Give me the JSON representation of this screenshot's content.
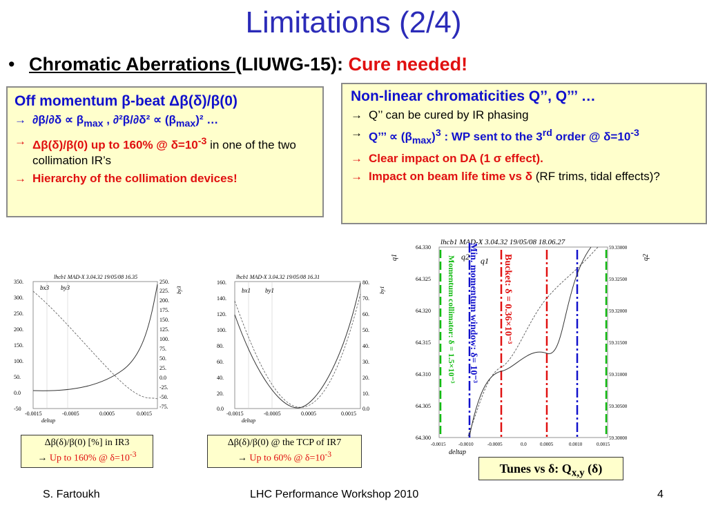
{
  "title": "Limitations (2/4)",
  "bullet": {
    "dot": "•",
    "underlined": "Chromatic Aberrations ",
    "rest": "(LIUWG-15): ",
    "red": "Cure needed!"
  },
  "left_box": {
    "head": "Off momentum β-beat Δβ(δ)/β(0)",
    "line1_a": "∂β/∂δ ∝ β",
    "line1_sub": "max",
    "line1_b": " , ∂²β/∂δ² ∝ (β",
    "line1_sub2": "max",
    "line1_c": ")²",
    "line1_d": " …",
    "line2_red": "Δβ(δ)/β(0) up to 160% @ δ=10",
    "line2_sup": "-3",
    "line2_rest": " in one of the two collimation IR’s",
    "line3": "Hierarchy of the collimation devices!"
  },
  "right_box": {
    "head": "Non-linear chromaticities Q’’, Q’’’ …",
    "line1": "Q’’ can be cured by IR phasing",
    "line2_a": "Q’’’ ∝ (β",
    "line2_sub": "max",
    "line2_b": ")",
    "line2_sup": "3",
    "line2_c": " : WP sent to the 3",
    "line2_sup2": "rd",
    "line2_d": " order @ δ=10",
    "line2_sup3": "-3",
    "line3": "Clear impact on DA (1 σ effect).",
    "line4_a": "Impact on beam life time vs δ",
    "line4_b": " (RF trims, tidal effects)?"
  },
  "arrow": "→",
  "plot1": {
    "header": "lhcb1     MAD-X 3.04.32  19/05/08 16.35",
    "legend1": "bx3",
    "legend2": "by3",
    "xlabel": "deltap",
    "ylabel_right": "by3",
    "yticks_left": [
      "350.",
      "300.",
      "250.",
      "200.",
      "150.",
      "100.",
      "50.",
      "0.0",
      "-50"
    ],
    "yticks_right": [
      "250.",
      "225.",
      "200.",
      "175.",
      "150.",
      "125.",
      "100.",
      "75.",
      "50.",
      "25.",
      "0.0",
      "-25.",
      "-50.",
      "-75."
    ],
    "xticks": [
      "-0.0015",
      "-0.0005",
      "0.0005",
      "0.0015"
    ]
  },
  "plot2": {
    "header": "lhcb1     MAD-X 3.04.32  19/05/08 16.31",
    "legend1": "bx1",
    "legend2": "by1",
    "xlabel": "deltap",
    "ylabel_right": "by1",
    "yticks_left": [
      "160.",
      "140.",
      "120.",
      "100.",
      "80.",
      "60.",
      "40.",
      "20.",
      "0.0"
    ],
    "yticks_right": [
      "80.",
      "70.",
      "60.",
      "50.",
      "40.",
      "30.",
      "20.",
      "10.",
      "0.0"
    ],
    "xticks": [
      "-0.0015",
      "-0.0005",
      "0.0005",
      "0.0015"
    ]
  },
  "plot3": {
    "header": "lhcb1     MAD-X 3.04.32  19/05/08 18.06.27",
    "legend1": "q2",
    "legend2": "q1",
    "ylabel_left": "q1",
    "ylabel_right": "q2",
    "xlabel": "deltap",
    "yticks_left": [
      "64.330",
      "64.325",
      "64.320",
      "64.315",
      "64.310",
      "64.305",
      "64.300"
    ],
    "yticks_right": [
      "59.33000",
      "59.32500",
      "59.32000",
      "59.31500",
      "59.31000",
      "59.30500",
      "59.30000"
    ],
    "xticks": [
      "-0.0015",
      "-0.0010",
      "-0.0005",
      "0.0",
      "0.0005",
      "0.0010",
      "0.0015"
    ],
    "label_green": "Momentum collimator: δ = 1.5×10⁻³",
    "label_blue": "Min. momentum window: δ= 10⁻³",
    "label_red": "Bucket: δ = 0.36×10⁻³",
    "colors": {
      "green": "#11bb11",
      "blue": "#1111cc",
      "red": "#e01010"
    }
  },
  "cap1": {
    "l1": "Δβ(δ)/β(0) [%]   in IR3",
    "l2": "Up to 160% @ δ=10",
    "sup": "-3"
  },
  "cap2": {
    "l1": "Δβ(δ)/β(0) @ the TCP of IR7",
    "l2": "Up to 60% @ δ=10",
    "sup": "-3"
  },
  "cap3": {
    "a": "Tunes vs δ: Q",
    "sub": "x,y",
    "b": " (δ)"
  },
  "footer": {
    "author": "S. Fartoukh",
    "event": "LHC Performance Workshop 2010",
    "page": "4"
  }
}
